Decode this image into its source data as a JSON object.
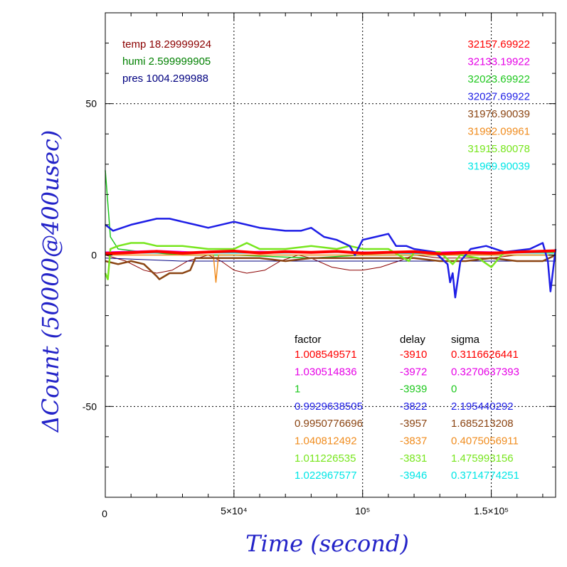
{
  "chart_data": {
    "type": "line",
    "xlabel": "Time (second)",
    "ylabel": "ΔCount (50000@400usec)",
    "xlim": [
      0,
      175000
    ],
    "ylim": [
      -80,
      80
    ],
    "grid": true,
    "x_ticks": [
      {
        "value": 50000,
        "label": "5×10⁴"
      },
      {
        "value": 100000,
        "label": "10⁵"
      },
      {
        "value": 150000,
        "label": "1.5×10⁵"
      }
    ],
    "x_origin_label": "0",
    "y_ticks": [
      {
        "value": 50,
        "label": "50"
      },
      {
        "value": 0,
        "label": "0"
      },
      {
        "value": -50,
        "label": "-50"
      }
    ],
    "env": [
      {
        "text": "temp 18.29999924",
        "color": "#8b0000"
      },
      {
        "text": "humi 2.599999905",
        "color": "#008000"
      },
      {
        "text": "pres 1004.299988",
        "color": "#000080"
      }
    ],
    "table_headers": {
      "factor": "factor",
      "delay": "delay",
      "sigma": "sigma"
    },
    "series": [
      {
        "count": "32157.69922",
        "factor": "1.008549571",
        "delay": "-3910",
        "sigma": "0.3116626441",
        "color": "#ff0000",
        "points": [
          [
            0,
            0.5
          ],
          [
            10000,
            0.8
          ],
          [
            20000,
            1.2
          ],
          [
            30000,
            0.6
          ],
          [
            40000,
            1.0
          ],
          [
            50000,
            1.3
          ],
          [
            60000,
            0.7
          ],
          [
            70000,
            1.1
          ],
          [
            80000,
            0.9
          ],
          [
            90000,
            1.2
          ],
          [
            100000,
            0.6
          ],
          [
            110000,
            0.9
          ],
          [
            120000,
            1.1
          ],
          [
            130000,
            0.4
          ],
          [
            140000,
            0.8
          ],
          [
            150000,
            0.6
          ],
          [
            160000,
            1.0
          ],
          [
            175000,
            1.4
          ]
        ]
      },
      {
        "count": "32133.19922",
        "factor": "1.030514836",
        "delay": "-3972",
        "sigma": "0.3270637393",
        "color": "#e600e6",
        "points": [
          [
            0,
            1.0
          ],
          [
            20000,
            1.5
          ],
          [
            40000,
            0.8
          ],
          [
            60000,
            1.2
          ],
          [
            80000,
            0.9
          ],
          [
            100000,
            1.0
          ],
          [
            120000,
            0.7
          ],
          [
            140000,
            1.2
          ],
          [
            160000,
            0.9
          ],
          [
            175000,
            1.5
          ]
        ]
      },
      {
        "count": "32023.69922",
        "factor": "1",
        "delay": "-3939",
        "sigma": "0",
        "color": "#1ec81e",
        "points": [
          [
            0,
            28
          ],
          [
            2000,
            6
          ],
          [
            5000,
            2
          ],
          [
            15000,
            1
          ],
          [
            30000,
            0
          ],
          [
            50000,
            0
          ],
          [
            80000,
            -1
          ],
          [
            100000,
            0
          ],
          [
            130000,
            0
          ],
          [
            150000,
            0
          ],
          [
            175000,
            0
          ]
        ]
      },
      {
        "count": "32027.69922",
        "factor": "0.9929638505",
        "delay": "-3822",
        "sigma": "2.195440292",
        "color": "#1e1ee6",
        "points": [
          [
            0,
            10
          ],
          [
            3000,
            8
          ],
          [
            10000,
            10
          ],
          [
            20000,
            12
          ],
          [
            25000,
            12
          ],
          [
            30000,
            11
          ],
          [
            35000,
            10
          ],
          [
            40000,
            9
          ],
          [
            50000,
            11
          ],
          [
            55000,
            10
          ],
          [
            60000,
            9
          ],
          [
            70000,
            8
          ],
          [
            76000,
            8
          ],
          [
            80000,
            9
          ],
          [
            85000,
            6
          ],
          [
            90000,
            5
          ],
          [
            95000,
            3
          ],
          [
            97000,
            0
          ],
          [
            100000,
            5
          ],
          [
            105000,
            6
          ],
          [
            110000,
            7
          ],
          [
            113000,
            3
          ],
          [
            117000,
            3
          ],
          [
            120000,
            2
          ],
          [
            128000,
            1
          ],
          [
            133000,
            -3
          ],
          [
            134000,
            -9
          ],
          [
            135000,
            -6
          ],
          [
            136000,
            -14
          ],
          [
            138000,
            -2
          ],
          [
            142000,
            2
          ],
          [
            148000,
            3
          ],
          [
            155000,
            1
          ],
          [
            165000,
            2
          ],
          [
            170000,
            4
          ],
          [
            172000,
            -2
          ],
          [
            173000,
            -12
          ],
          [
            175000,
            2
          ]
        ]
      },
      {
        "count": "31976.90039",
        "factor": "0.9950776696",
        "delay": "-3957",
        "sigma": "1.685213208",
        "color": "#8b4513",
        "points": [
          [
            0,
            -2
          ],
          [
            5000,
            -3
          ],
          [
            10000,
            -2
          ],
          [
            15000,
            -3
          ],
          [
            20000,
            -7
          ],
          [
            21000,
            -8
          ],
          [
            25000,
            -6
          ],
          [
            30000,
            -6
          ],
          [
            33000,
            -5
          ],
          [
            35000,
            -1
          ],
          [
            40000,
            -1
          ],
          [
            50000,
            -1
          ],
          [
            60000,
            -1
          ],
          [
            70000,
            -2
          ],
          [
            80000,
            -1
          ],
          [
            90000,
            -1
          ],
          [
            100000,
            -1
          ],
          [
            110000,
            -1
          ],
          [
            120000,
            -1
          ],
          [
            130000,
            -2
          ],
          [
            140000,
            -2
          ],
          [
            150000,
            -1
          ],
          [
            160000,
            -2
          ],
          [
            170000,
            -2
          ],
          [
            175000,
            0
          ]
        ]
      },
      {
        "count": "31992.09961",
        "factor": "1.040812492",
        "delay": "-3837",
        "sigma": "0.4075056911",
        "color": "#f08c1e",
        "points": [
          [
            0,
            0
          ],
          [
            10000,
            0
          ],
          [
            20000,
            0
          ],
          [
            30000,
            0
          ],
          [
            42000,
            0
          ],
          [
            43000,
            -9
          ],
          [
            44000,
            0
          ],
          [
            60000,
            0
          ],
          [
            80000,
            0
          ],
          [
            100000,
            0
          ],
          [
            120000,
            0
          ],
          [
            140000,
            0
          ],
          [
            160000,
            0
          ],
          [
            175000,
            0
          ]
        ]
      },
      {
        "count": "31915.80078",
        "factor": "1.011226535",
        "delay": "-3831",
        "sigma": "1.475993156",
        "color": "#78e61e",
        "points": [
          [
            0,
            -6
          ],
          [
            1000,
            -8
          ],
          [
            2000,
            2
          ],
          [
            5000,
            3
          ],
          [
            10000,
            4
          ],
          [
            15000,
            4
          ],
          [
            20000,
            3
          ],
          [
            30000,
            3
          ],
          [
            40000,
            2
          ],
          [
            50000,
            2
          ],
          [
            55000,
            4
          ],
          [
            60000,
            2
          ],
          [
            70000,
            2
          ],
          [
            80000,
            3
          ],
          [
            90000,
            2
          ],
          [
            95000,
            3
          ],
          [
            100000,
            2
          ],
          [
            110000,
            2
          ],
          [
            118000,
            -2
          ],
          [
            120000,
            1
          ],
          [
            130000,
            1
          ],
          [
            135000,
            -3
          ],
          [
            138000,
            0
          ],
          [
            145000,
            -1
          ],
          [
            150000,
            -4
          ],
          [
            155000,
            1
          ],
          [
            165000,
            1
          ],
          [
            175000,
            1
          ]
        ]
      },
      {
        "count": "31969.90039",
        "factor": "1.022967577",
        "delay": "-3946",
        "sigma": "0.3714774251",
        "color": "#00e6e6",
        "points": [
          [
            0,
            0.5
          ],
          [
            30000,
            0.8
          ],
          [
            60000,
            0.6
          ],
          [
            90000,
            0.9
          ],
          [
            120000,
            0.5
          ],
          [
            150000,
            0.8
          ],
          [
            175000,
            0.6
          ]
        ]
      }
    ],
    "extra_lines": [
      {
        "name": "temp",
        "color": "#8b0000",
        "points": [
          [
            0,
            0
          ],
          [
            8000,
            -2
          ],
          [
            15000,
            -5
          ],
          [
            20000,
            -6
          ],
          [
            26000,
            -5
          ],
          [
            32000,
            -2
          ],
          [
            40000,
            0
          ],
          [
            45000,
            -2
          ],
          [
            50000,
            -5
          ],
          [
            55000,
            -6
          ],
          [
            62000,
            -5
          ],
          [
            68000,
            -2
          ],
          [
            75000,
            0
          ],
          [
            80000,
            -1
          ],
          [
            88000,
            -4
          ],
          [
            95000,
            -5
          ],
          [
            100000,
            -5
          ],
          [
            107000,
            -4
          ],
          [
            114000,
            -2
          ],
          [
            120000,
            0
          ],
          [
            130000,
            -1
          ],
          [
            140000,
            -1
          ],
          [
            150000,
            -1
          ],
          [
            160000,
            0
          ],
          [
            175000,
            0
          ]
        ]
      },
      {
        "name": "pres",
        "color": "#000080",
        "points": [
          [
            0,
            -1
          ],
          [
            30000,
            -2
          ],
          [
            60000,
            -2
          ],
          [
            90000,
            -2
          ],
          [
            120000,
            -2
          ],
          [
            150000,
            -2
          ],
          [
            175000,
            -2
          ]
        ]
      }
    ]
  }
}
